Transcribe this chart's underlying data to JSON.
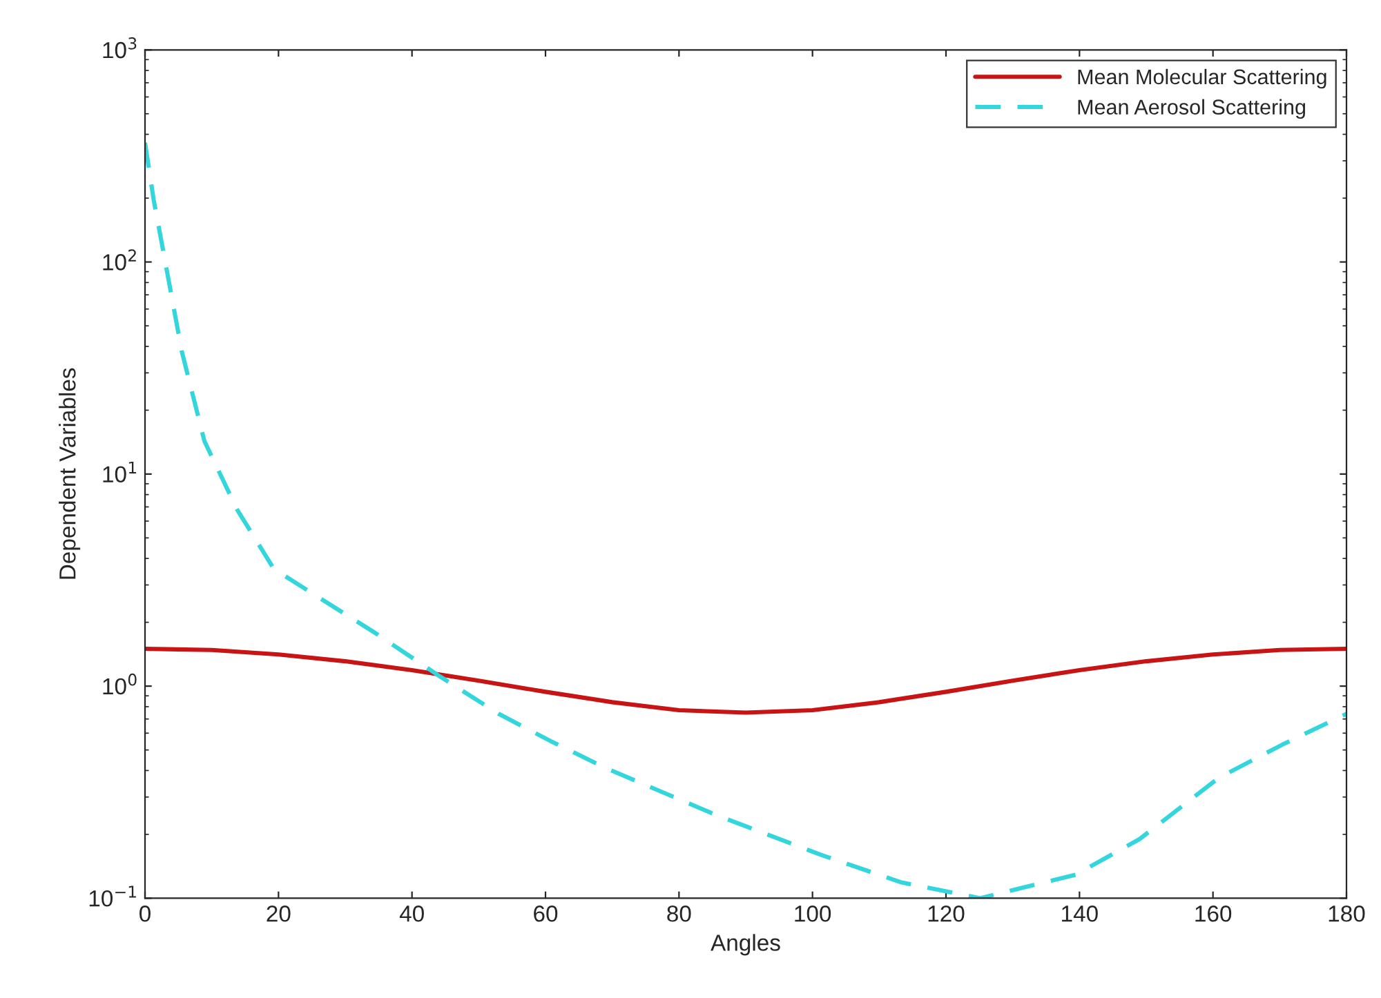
{
  "chart_data": {
    "type": "line",
    "xlabel": "Angles",
    "ylabel": "Dependent Variables",
    "log": "y",
    "xlim": [
      0,
      180
    ],
    "xticks": [
      0,
      20,
      40,
      60,
      80,
      100,
      120,
      140,
      160,
      180
    ],
    "ylim": [
      0.1,
      1000
    ],
    "yticks": [
      {
        "value": 0.1,
        "label": "10$^{−1}$"
      },
      {
        "value": 1,
        "label": "10$^{0}$"
      },
      {
        "value": 10,
        "label": "10$^{1}$"
      },
      {
        "value": 100,
        "label": "10$^{2}$"
      },
      {
        "value": 1000,
        "label": "10$^{3}$"
      }
    ],
    "grid": false,
    "legend": "top right",
    "series": [
      {
        "name": "Mean Molecular Scattering",
        "color": "#c81414",
        "line_style": "solid",
        "x": [
          0,
          10,
          20,
          30,
          40,
          50,
          60,
          70,
          80,
          90,
          100,
          110,
          120,
          130,
          140,
          150,
          160,
          170,
          180
        ],
        "values": [
          1.5,
          1.48,
          1.41,
          1.31,
          1.19,
          1.06,
          0.94,
          0.84,
          0.77,
          0.75,
          0.77,
          0.84,
          0.94,
          1.06,
          1.19,
          1.31,
          1.41,
          1.48,
          1.5
        ]
      },
      {
        "name": "Mean Aerosol Scattering",
        "color": "#33d6dc",
        "line_style": "dashed",
        "x": [
          0,
          1.3,
          2.7,
          5.5,
          8.9,
          13.8,
          19.3,
          26.2,
          34.5,
          44.2,
          53,
          60.8,
          69.1,
          85.8,
          101.3,
          113.2,
          125.1,
          139.4,
          149,
          160.9,
          170.4,
          180
        ],
        "values": [
          365,
          196,
          114,
          38,
          14.3,
          6.8,
          3.57,
          2.6,
          1.78,
          1.11,
          0.74,
          0.55,
          0.41,
          0.245,
          0.16,
          0.119,
          0.1,
          0.129,
          0.19,
          0.37,
          0.53,
          0.74
        ]
      }
    ]
  }
}
